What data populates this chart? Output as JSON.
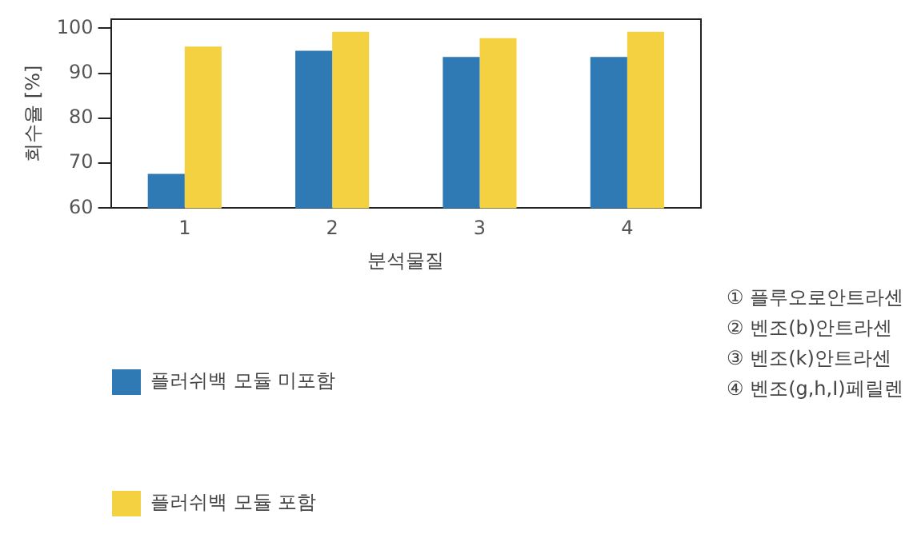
{
  "chart_data": {
    "type": "bar",
    "xlabel": "분석물질",
    "ylabel": "회수율 [%]",
    "categories": [
      "1",
      "2",
      "3",
      "4"
    ],
    "series": [
      {
        "name": "플러쉬백 모듈 미포함",
        "color": "#2f7ab5",
        "values": [
          67.6,
          95.0,
          93.6,
          93.6
        ]
      },
      {
        "name": "플러쉬백 모듈 포함",
        "color": "#f4d141",
        "values": [
          95.9,
          99.2,
          97.8,
          99.2
        ]
      }
    ],
    "ylim": [
      60,
      102
    ],
    "yticks": [
      60,
      70,
      80,
      90,
      100
    ],
    "grid": false,
    "legend": "bottom left",
    "annotations": [
      "① 플루오로안트라센",
      "② 벤조(b)안트라센",
      "③ 벤조(k)안트라센",
      "④ 벤조(g,h,I)페릴렌"
    ]
  }
}
